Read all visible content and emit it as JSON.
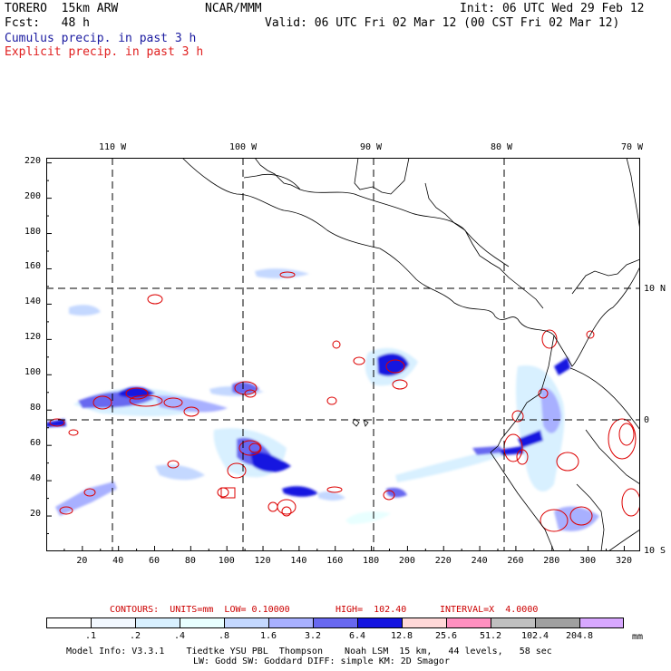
{
  "header": {
    "model": "TORERO  15km ARW",
    "center": "NCAR/MMM",
    "init": "Init: 06 UTC Wed 29 Feb 12",
    "fcst": "Fcst:   48 h",
    "valid": "Valid: 06 UTC Fri 02 Mar 12 (00 CST Fri 02 Mar 12)",
    "field1": "Cumulus precip. in past 3 h",
    "field2": "Explicit precip. in past 3 h"
  },
  "colors": {
    "field1": "#1a1aa0",
    "field2": "#e02020",
    "contour": "#dd0000",
    "contours_line": "#cc0000"
  },
  "map": {
    "top_lon_labels": [
      "110 W",
      "100 W",
      "90 W",
      "80 W",
      "70 W"
    ],
    "right_lat_labels": [
      "10 N",
      "0",
      "10 S"
    ],
    "x_ticks": [
      "20",
      "40",
      "60",
      "80",
      "100",
      "120",
      "140",
      "160",
      "180",
      "200",
      "220",
      "240",
      "260",
      "280",
      "300",
      "320"
    ],
    "y_ticks": [
      "20",
      "40",
      "60",
      "80",
      "100",
      "120",
      "140",
      "160",
      "180",
      "200",
      "220"
    ]
  },
  "contours_info": {
    "units": "CONTOURS:  UNITS=mm  LOW= 0.10000",
    "high": "HIGH=  102.40",
    "interval": "INTERVAL=X  4.0000"
  },
  "legend": {
    "colors": [
      "#ffffff",
      "#f2f8ff",
      "#d8f0ff",
      "#e8ffff",
      "#c4d8ff",
      "#a8b0ff",
      "#6868f0",
      "#1414e0",
      "#ffd8d8",
      "#ff90c0",
      "#c0c0c0",
      "#a0a0a0",
      "#d8a8ff"
    ],
    "labels": [
      ".1",
      ".2",
      ".4",
      ".8",
      "1.6",
      "3.2",
      "6.4",
      "12.8",
      "25.6",
      "51.2",
      "102.4",
      "204.8"
    ],
    "unit": "mm"
  },
  "footer": {
    "line1": "Model Info: V3.3.1    Tiedtke YSU PBL  Thompson    Noah LSM  15 km,   44 levels,   58 sec",
    "line2": "LW: Godd SW: Goddard DIFF: simple KM: 2D Smagor"
  }
}
